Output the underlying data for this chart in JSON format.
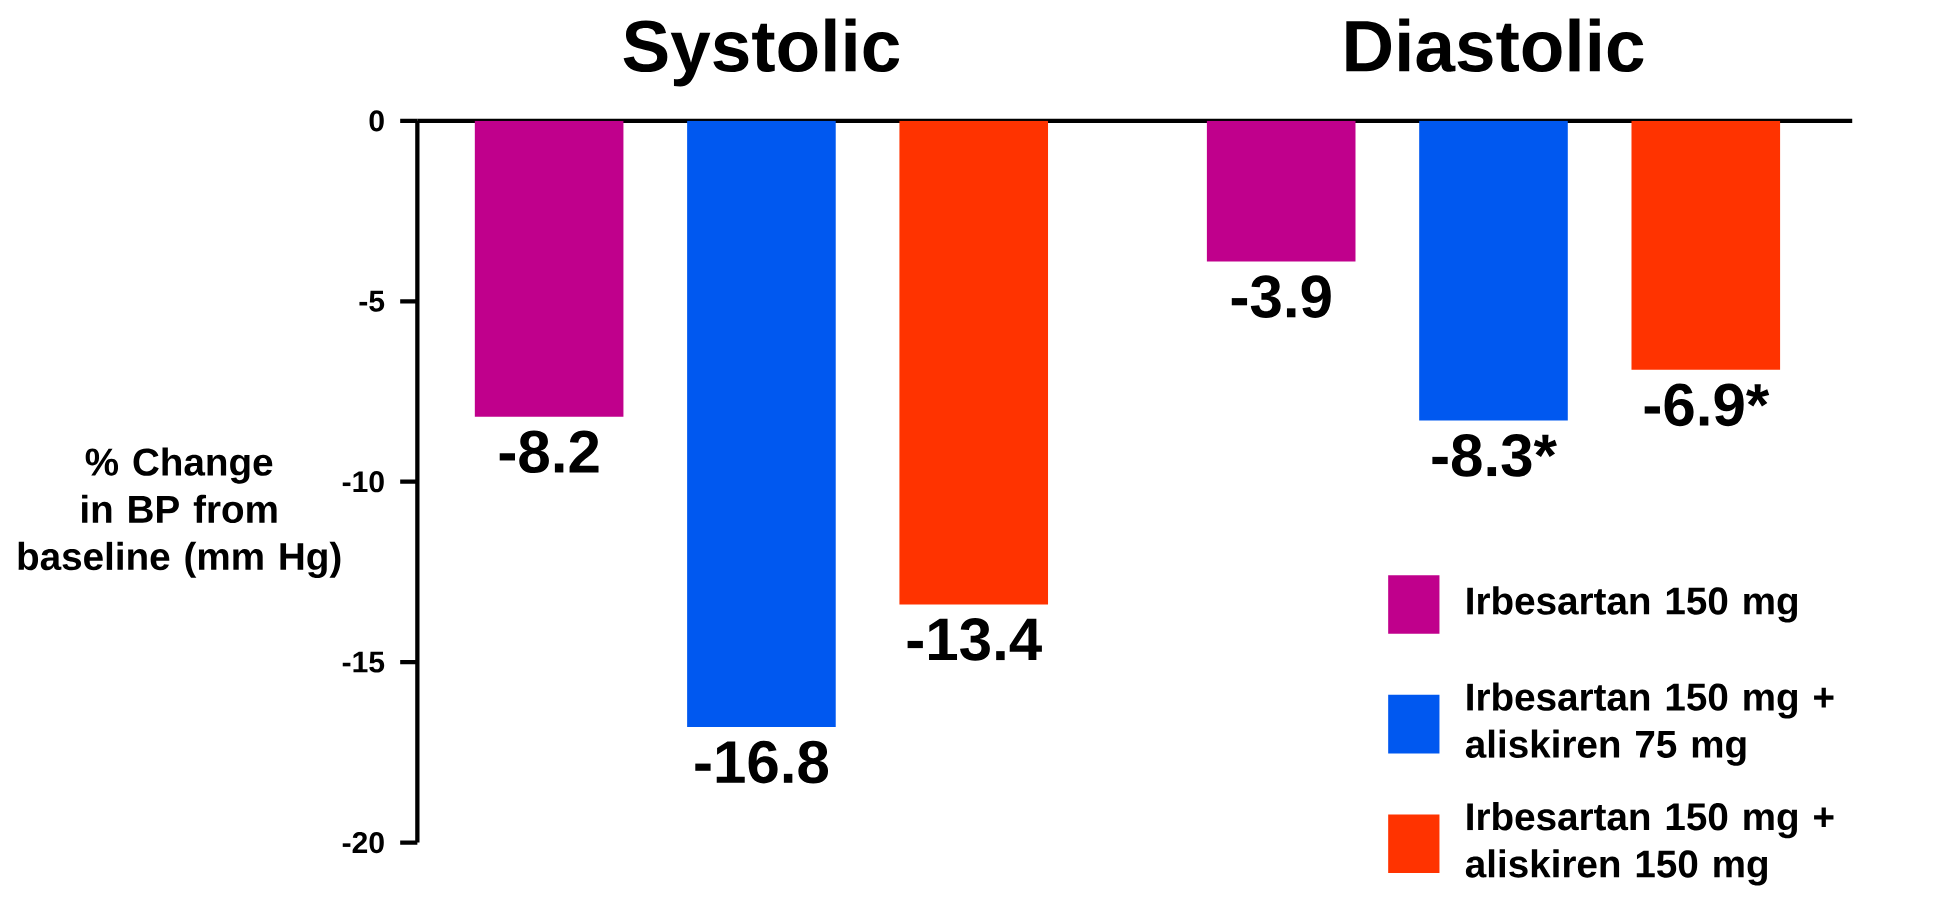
{
  "chart_data": {
    "type": "bar",
    "ylabel": "% Change in BP from baseline (mm Hg)",
    "categories": [
      "Systolic",
      "Diastolic"
    ],
    "series": [
      {
        "name": "Irbesartan 150 mg",
        "color": "#c0008c",
        "values": [
          -8.2,
          -3.9
        ],
        "value_labels": [
          "-8.2",
          "-3.9"
        ]
      },
      {
        "name": "Irbesartan 150 mg + aliskiren 75 mg",
        "color": "#0058f0",
        "values": [
          -16.8,
          -8.3
        ],
        "value_labels": [
          "-16.8",
          "-8.3*"
        ]
      },
      {
        "name": "Irbesartan 150 mg + aliskiren 150 mg",
        "color": "#ff3300",
        "values": [
          -13.4,
          -6.9
        ],
        "value_labels": [
          "-13.4",
          "-6.9*"
        ]
      }
    ],
    "ylim": [
      -20,
      0
    ],
    "yticks": [
      0,
      -5,
      -10,
      -15,
      -20
    ],
    "legend": "bottom right",
    "grid": false
  }
}
